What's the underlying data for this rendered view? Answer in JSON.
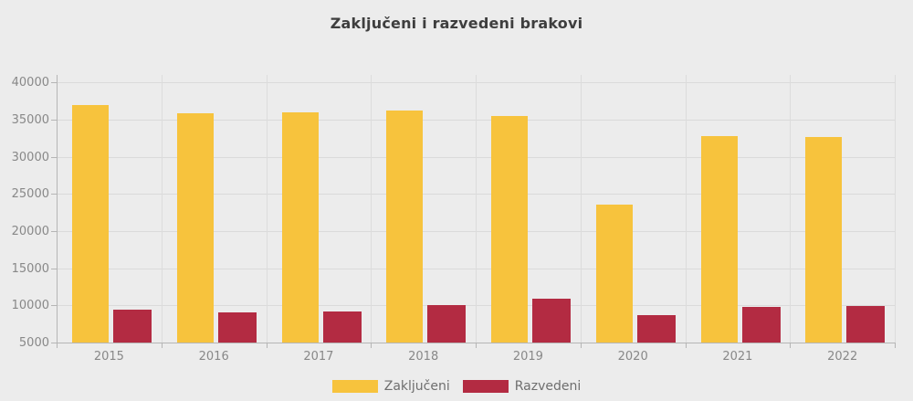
{
  "title": "Zaključeni i razvedeni brakovi",
  "colors": {
    "background": "#ececec",
    "married_bar": "#f7c33d",
    "divorced_bar": "#b32b42",
    "grid": "#dadada",
    "grid_vertical": "#dcdcdc",
    "axis": "#b5b5b5",
    "title_text": "#3e3e3e",
    "axis_text": "#888888",
    "legend_text": "#6e6e6e"
  },
  "legend": {
    "items": [
      {
        "label": "Zaključeni",
        "color": "#f7c33d"
      },
      {
        "label": "Razvedeni",
        "color": "#b32b42"
      }
    ]
  },
  "chart_data": {
    "type": "bar",
    "title": "Zaključeni i razvedeni brakovi",
    "categories": [
      "2015",
      "2016",
      "2017",
      "2018",
      "2019",
      "2020",
      "2021",
      "2022"
    ],
    "series": [
      {
        "name": "Zaključeni",
        "color": "#f7c33d",
        "values": [
          36900,
          35900,
          36000,
          36200,
          35500,
          23500,
          32800,
          32700
        ]
      },
      {
        "name": "Razvedeni",
        "color": "#b32b42",
        "values": [
          9400,
          9100,
          9200,
          10000,
          10900,
          8700,
          9800,
          9900
        ]
      }
    ],
    "xlabel": "",
    "ylabel": "",
    "ylim": [
      5000,
      41000
    ],
    "yticks": [
      5000,
      10000,
      15000,
      20000,
      25000,
      30000,
      35000,
      40000
    ],
    "grid": true,
    "legend_position": "bottom"
  }
}
